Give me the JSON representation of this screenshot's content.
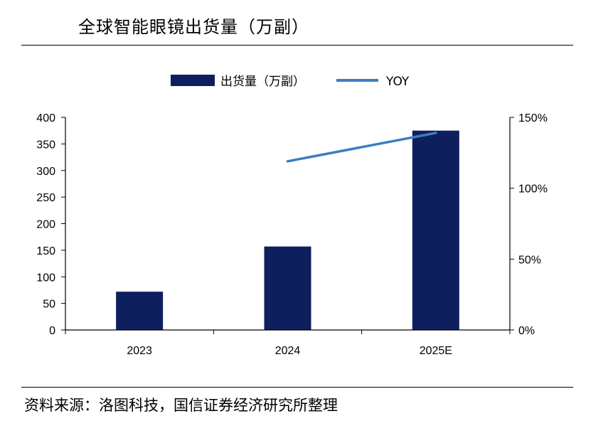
{
  "header": {
    "title": "全球智能眼镜出货量（万副）"
  },
  "footer": {
    "source": "资料来源：洛图科技，国信证券经济研究所整理"
  },
  "colors": {
    "bar": "#0d1f5c",
    "line": "#3b7dc1",
    "axis": "#000000"
  },
  "chart_data": {
    "type": "bar",
    "title": "全球智能眼镜出货量（万副）",
    "categories": [
      "2023",
      "2024",
      "2025E"
    ],
    "series": [
      {
        "name": "出货量（万副）",
        "type": "bar",
        "axis": "left",
        "values": [
          72,
          157,
          375
        ]
      },
      {
        "name": "YOY",
        "type": "line",
        "axis": "right",
        "values": [
          null,
          1.19,
          1.39
        ]
      }
    ],
    "ylim_left": [
      0,
      400
    ],
    "yticks_left": [
      "0",
      "50",
      "100",
      "150",
      "200",
      "250",
      "300",
      "350",
      "400"
    ],
    "ylim_right": [
      0,
      1.5
    ],
    "yticks_right": [
      "0%",
      "50%",
      "100%",
      "150%"
    ],
    "legend_position": "top-center",
    "grid": false
  }
}
